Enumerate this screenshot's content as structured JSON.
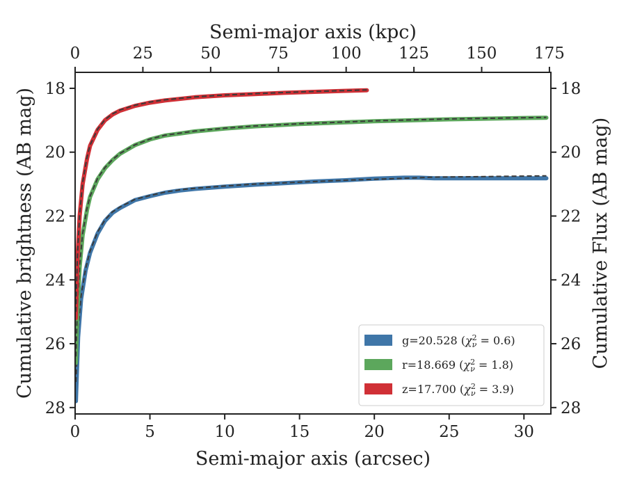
{
  "chart_data": {
    "type": "line",
    "xlabel_bottom": "Semi-major axis (arcsec)",
    "xlabel_top": "Semi-major axis (kpc)",
    "ylabel_left": "Cumulative brightness (AB mag)",
    "ylabel_right": "Cumulative Flux (AB mag)",
    "xlim": [
      0,
      31.8
    ],
    "ylim": [
      28.2,
      17.5
    ],
    "y_inverted": true,
    "x_ticks": [
      0,
      5,
      10,
      15,
      20,
      25,
      30
    ],
    "x_ticks_labels": [
      "0",
      "5",
      "10",
      "15",
      "20",
      "25",
      "30"
    ],
    "x_top_ticks_kpc": [
      0,
      25,
      50,
      75,
      100,
      125,
      150,
      175
    ],
    "x_top_ticks_labels": [
      "0",
      "25",
      "50",
      "75",
      "100",
      "125",
      "150",
      "175"
    ],
    "kpc_per_arcsec": 5.52,
    "y_ticks": [
      18,
      20,
      22,
      24,
      26,
      28
    ],
    "y_ticks_labels": [
      "18",
      "20",
      "22",
      "24",
      "26",
      "28"
    ],
    "grid": false,
    "legend_position": "lower-right",
    "series": [
      {
        "name": "g=20.528 (χ²ν = 0.6)",
        "legend_main": "g=20.528 (",
        "legend_chi": "χ",
        "legend_sup": "2",
        "legend_sub": "ν",
        "legend_eq": " = 0.6)",
        "color": "#3f76a8",
        "x": [
          0.05,
          0.2,
          0.4,
          0.7,
          1.0,
          1.5,
          2.0,
          2.5,
          3.0,
          4.0,
          5.0,
          6.0,
          7.0,
          8.0,
          10.0,
          12.0,
          14.0,
          16.0,
          18.0,
          20.0,
          22.0,
          23.0,
          24.0,
          26.0,
          28.0,
          30.0,
          31.5
        ],
        "y": [
          27.8,
          25.8,
          24.6,
          23.7,
          23.15,
          22.55,
          22.15,
          21.9,
          21.75,
          21.5,
          21.38,
          21.27,
          21.2,
          21.15,
          21.08,
          21.02,
          20.97,
          20.92,
          20.88,
          20.83,
          20.8,
          20.8,
          20.82,
          20.82,
          20.82,
          20.82,
          20.82
        ],
        "model_y": [
          27.2,
          25.6,
          24.5,
          23.65,
          23.1,
          22.5,
          22.12,
          21.87,
          21.72,
          21.48,
          21.36,
          21.25,
          21.18,
          21.13,
          21.06,
          21.0,
          20.96,
          20.92,
          20.88,
          20.85,
          20.82,
          20.8,
          20.78,
          20.77,
          20.76,
          20.75,
          20.74
        ]
      },
      {
        "name": "r=18.669 (χ²ν = 1.8)",
        "legend_main": "r=18.669 (",
        "legend_chi": "χ",
        "legend_sup": "2",
        "legend_sub": "ν",
        "legend_eq": " = 1.8)",
        "color": "#5ca75c",
        "x": [
          0.05,
          0.15,
          0.3,
          0.5,
          0.8,
          1.0,
          1.5,
          2.0,
          2.5,
          3.0,
          4.0,
          5.0,
          6.0,
          8.0,
          10.0,
          12.0,
          15.0,
          20.0,
          25.0,
          30.0,
          31.5
        ],
        "y": [
          26.6,
          25.0,
          23.6,
          22.6,
          21.8,
          21.4,
          20.85,
          20.5,
          20.25,
          20.05,
          19.78,
          19.6,
          19.48,
          19.35,
          19.26,
          19.19,
          19.12,
          19.03,
          18.97,
          18.93,
          18.92
        ],
        "model_y": [
          26.4,
          24.9,
          23.55,
          22.55,
          21.75,
          21.38,
          20.82,
          20.48,
          20.23,
          20.04,
          19.77,
          19.59,
          19.47,
          19.34,
          19.25,
          19.18,
          19.11,
          19.02,
          18.96,
          18.92,
          18.91
        ]
      },
      {
        "name": "z=17.700 (χ²ν = 3.9)",
        "legend_main": "z=17.700 (",
        "legend_chi": "χ",
        "legend_sup": "2",
        "legend_sub": "ν",
        "legend_eq": " = 3.9)",
        "color": "#d03036",
        "x": [
          0.05,
          0.15,
          0.3,
          0.5,
          0.8,
          1.0,
          1.5,
          2.0,
          2.5,
          3.0,
          4.0,
          5.0,
          6.0,
          8.0,
          10.0,
          12.0,
          14.0,
          16.0,
          18.0,
          19.5
        ],
        "y": [
          25.2,
          23.4,
          22.0,
          21.0,
          20.2,
          19.8,
          19.3,
          19.0,
          18.82,
          18.7,
          18.55,
          18.45,
          18.38,
          18.28,
          18.22,
          18.18,
          18.14,
          18.11,
          18.08,
          18.06
        ],
        "model_y": [
          25.0,
          23.3,
          21.95,
          20.95,
          20.15,
          19.78,
          19.28,
          18.98,
          18.8,
          18.68,
          18.53,
          18.43,
          18.36,
          18.27,
          18.21,
          18.17,
          18.13,
          18.1,
          18.07,
          18.05
        ]
      }
    ]
  }
}
